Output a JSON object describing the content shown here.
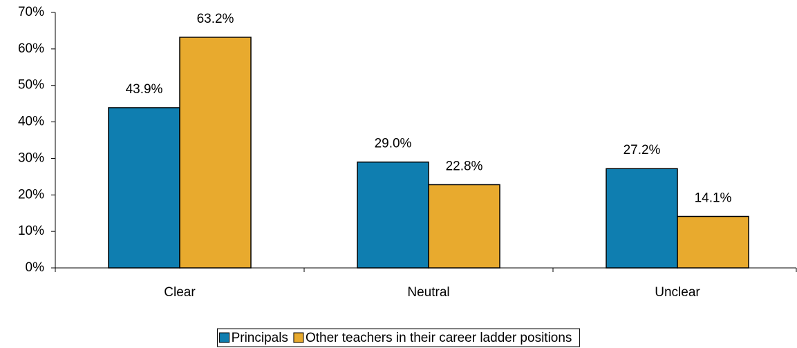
{
  "chart_data": {
    "type": "bar",
    "categories": [
      "Clear",
      "Neutral",
      "Unclear"
    ],
    "series": [
      {
        "name": "Principals",
        "color": "#0f7eb0",
        "values": [
          43.9,
          29.0,
          27.2
        ],
        "value_labels": [
          "43.9%",
          "29.0%",
          "27.2%"
        ]
      },
      {
        "name": "Other teachers in their career ladder positions",
        "color": "#e8aa2e",
        "values": [
          63.2,
          22.8,
          14.1
        ],
        "value_labels": [
          "63.2%",
          "22.8%",
          "14.1%"
        ]
      }
    ],
    "ylim": [
      0,
      70
    ],
    "yticks": [
      {
        "value": 0,
        "label": "0%"
      },
      {
        "value": 10,
        "label": "10%"
      },
      {
        "value": 20,
        "label": "20%"
      },
      {
        "value": 30,
        "label": "30%"
      },
      {
        "value": 40,
        "label": "40%"
      },
      {
        "value": 50,
        "label": "50%"
      },
      {
        "value": 60,
        "label": "60%"
      },
      {
        "value": 70,
        "label": "70%"
      }
    ],
    "grid": false,
    "legend": "bottom"
  }
}
